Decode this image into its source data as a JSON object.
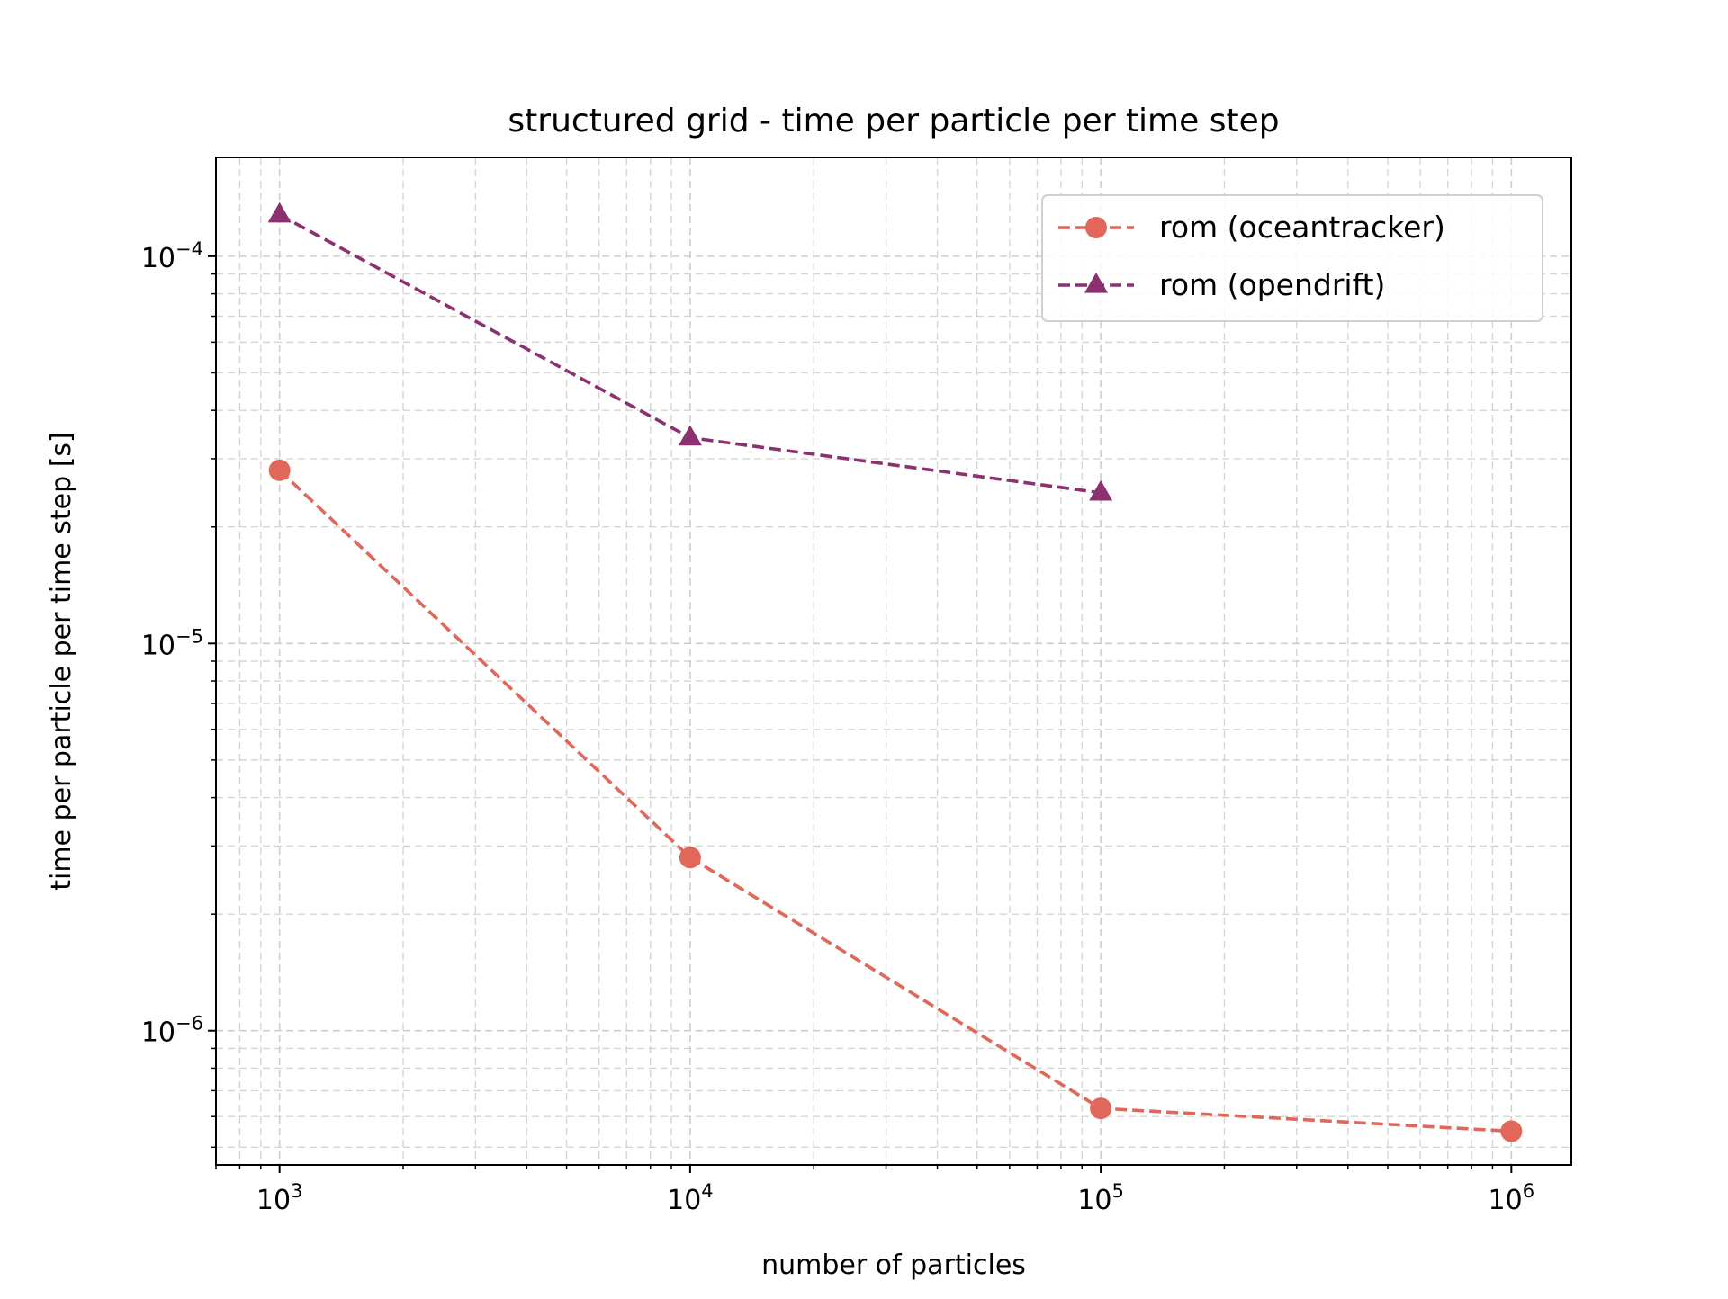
{
  "chart_data": {
    "type": "line",
    "title": "structured grid - time per particle per time step",
    "xlabel": "number of particles",
    "ylabel": "time per particle per time step [s]",
    "xscale": "log",
    "yscale": "log",
    "xlim": [
      700,
      1400000
    ],
    "ylim": [
      4.5e-07,
      0.00018
    ],
    "xticks": [
      {
        "value": 1000,
        "base": "10",
        "exp": "3"
      },
      {
        "value": 10000,
        "base": "10",
        "exp": "4"
      },
      {
        "value": 100000,
        "base": "10",
        "exp": "5"
      },
      {
        "value": 1000000,
        "base": "10",
        "exp": "6"
      }
    ],
    "yticks": [
      {
        "value": 1e-06,
        "base": "10",
        "exp": "−6"
      },
      {
        "value": 1e-05,
        "base": "10",
        "exp": "−5"
      },
      {
        "value": 0.0001,
        "base": "10",
        "exp": "−4"
      }
    ],
    "grid": true,
    "legend_position": "top-right",
    "series": [
      {
        "name": "rom (oceantracker)",
        "color": "#e0675a",
        "marker": "circle",
        "linestyle": "dashed",
        "x": [
          1000,
          10000,
          100000,
          1000000
        ],
        "y": [
          2.8e-05,
          2.8e-06,
          6.3e-07,
          5.5e-07
        ]
      },
      {
        "name": "rom (opendrift)",
        "color": "#8b3170",
        "marker": "triangle",
        "linestyle": "dashed",
        "x": [
          1000,
          10000,
          100000
        ],
        "y": [
          0.000128,
          3.4e-05,
          2.45e-05
        ]
      }
    ]
  }
}
